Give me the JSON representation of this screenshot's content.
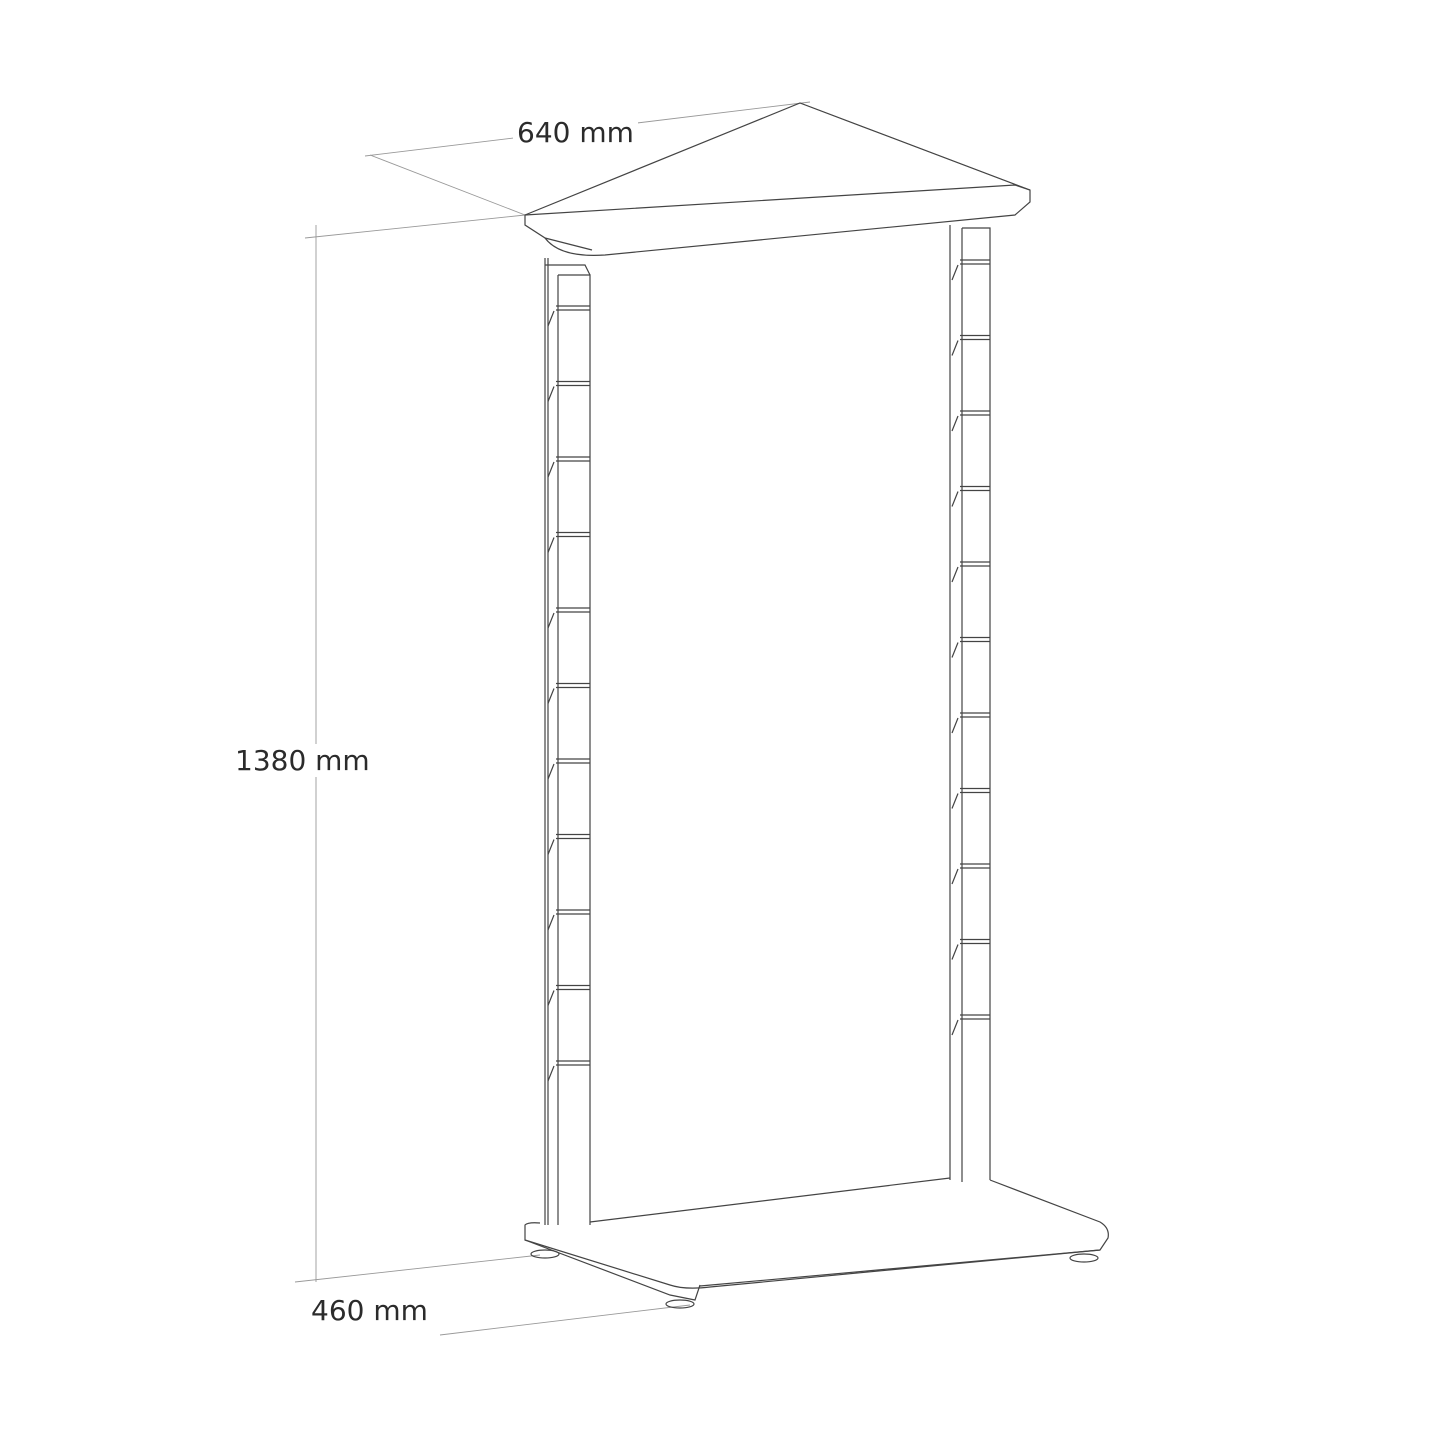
{
  "dimensions": {
    "width": "640 mm",
    "height": "1380 mm",
    "depth": "460 mm"
  },
  "line_color": "#444444",
  "dimension_line_color": "#999999"
}
